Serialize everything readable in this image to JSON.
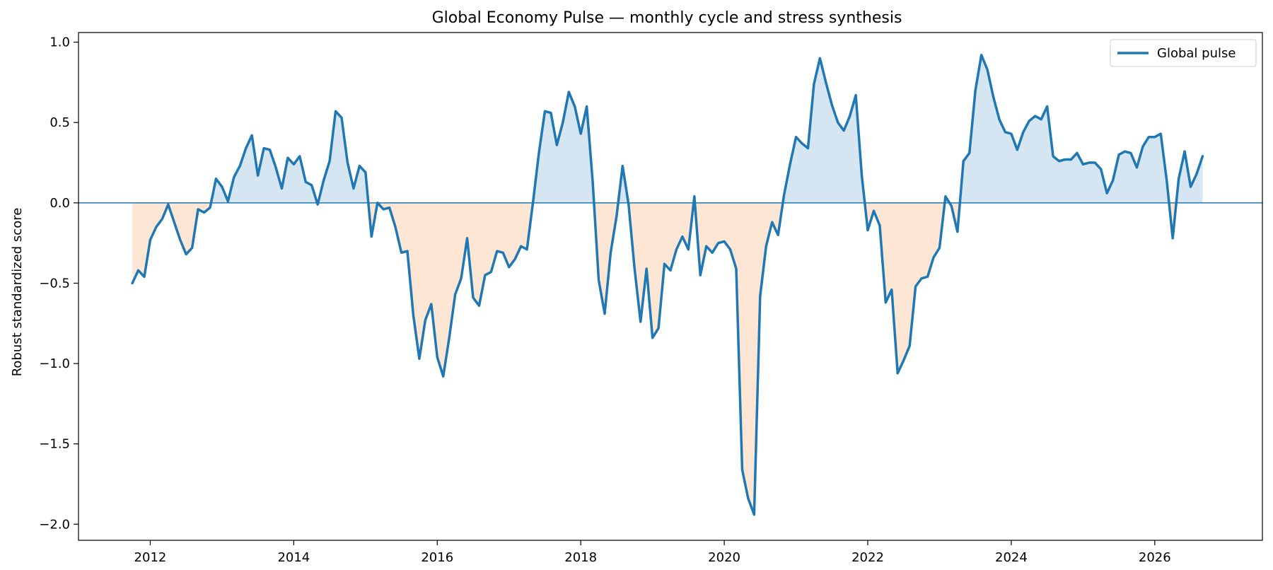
{
  "chart_data": {
    "type": "area",
    "title": "Global Economy Pulse — monthly cycle and stress synthesis",
    "xlabel": "",
    "ylabel": "Robust standardized score",
    "xlim": [
      2011.0,
      2027.5
    ],
    "ylim": [
      -2.1,
      1.06
    ],
    "x_ticks": [
      2012,
      2014,
      2016,
      2018,
      2020,
      2022,
      2024,
      2026
    ],
    "y_ticks": [
      1.0,
      0.5,
      0.0,
      -0.5,
      -1.0,
      -1.5,
      -2.0
    ],
    "x_tick_labels": [
      "2012",
      "2014",
      "2016",
      "2018",
      "2020",
      "2022",
      "2024",
      "2026"
    ],
    "y_tick_labels": [
      "1.0",
      "0.5",
      "0.0",
      "−0.5",
      "−1.0",
      "−1.5",
      "−2.0"
    ],
    "baseline": 0.0,
    "grid": false,
    "legend_position": "top-right",
    "fill_above": "positive",
    "fill_below": "negative",
    "series": [
      {
        "name": "Global pulse",
        "color": "#1f77b4",
        "x": [
          "2011-10",
          "2011-11",
          "2011-12",
          "2012-01",
          "2012-02",
          "2012-03",
          "2012-04",
          "2012-05",
          "2012-06",
          "2012-07",
          "2012-08",
          "2012-09",
          "2012-10",
          "2012-11",
          "2012-12",
          "2013-01",
          "2013-02",
          "2013-03",
          "2013-04",
          "2013-05",
          "2013-06",
          "2013-07",
          "2013-08",
          "2013-09",
          "2013-10",
          "2013-11",
          "2013-12",
          "2014-01",
          "2014-02",
          "2014-03",
          "2014-04",
          "2014-05",
          "2014-06",
          "2014-07",
          "2014-08",
          "2014-09",
          "2014-10",
          "2014-11",
          "2014-12",
          "2015-01",
          "2015-02",
          "2015-03",
          "2015-04",
          "2015-05",
          "2015-06",
          "2015-07",
          "2015-08",
          "2015-09",
          "2015-10",
          "2015-11",
          "2015-12",
          "2016-01",
          "2016-02",
          "2016-03",
          "2016-04",
          "2016-05",
          "2016-06",
          "2016-07",
          "2016-08",
          "2016-09",
          "2016-10",
          "2016-11",
          "2016-12",
          "2017-01",
          "2017-02",
          "2017-03",
          "2017-04",
          "2017-05",
          "2017-06",
          "2017-07",
          "2017-08",
          "2017-09",
          "2017-10",
          "2017-11",
          "2017-12",
          "2018-01",
          "2018-02",
          "2018-03",
          "2018-04",
          "2018-05",
          "2018-06",
          "2018-07",
          "2018-08",
          "2018-09",
          "2018-10",
          "2018-11",
          "2018-12",
          "2019-01",
          "2019-02",
          "2019-03",
          "2019-04",
          "2019-05",
          "2019-06",
          "2019-07",
          "2019-08",
          "2019-09",
          "2019-10",
          "2019-11",
          "2019-12",
          "2020-01",
          "2020-02",
          "2020-03",
          "2020-04",
          "2020-05",
          "2020-06",
          "2020-07",
          "2020-08",
          "2020-09",
          "2020-10",
          "2020-11",
          "2020-12",
          "2021-01",
          "2021-02",
          "2021-03",
          "2021-04",
          "2021-05",
          "2021-06",
          "2021-07",
          "2021-08",
          "2021-09",
          "2021-10",
          "2021-11",
          "2021-12",
          "2022-01",
          "2022-02",
          "2022-03",
          "2022-04",
          "2022-05",
          "2022-06",
          "2022-07",
          "2022-08",
          "2022-09",
          "2022-10",
          "2022-11",
          "2022-12",
          "2023-01",
          "2023-02",
          "2023-03",
          "2023-04",
          "2023-05",
          "2023-06",
          "2023-07",
          "2023-08",
          "2023-09",
          "2023-10",
          "2023-11",
          "2023-12",
          "2024-01",
          "2024-02",
          "2024-03",
          "2024-04",
          "2024-05",
          "2024-06",
          "2024-07",
          "2024-08",
          "2024-09",
          "2024-10",
          "2024-11",
          "2024-12",
          "2025-01",
          "2025-02",
          "2025-03",
          "2025-04",
          "2025-05",
          "2025-06",
          "2025-07",
          "2025-08",
          "2025-09",
          "2025-10",
          "2025-11",
          "2025-12",
          "2026-01",
          "2026-02",
          "2026-03",
          "2026-04",
          "2026-05",
          "2026-06",
          "2026-07",
          "2026-08",
          "2026-09"
        ],
        "values": [
          -0.5,
          -0.42,
          -0.46,
          -0.23,
          -0.15,
          -0.1,
          -0.01,
          -0.12,
          -0.23,
          -0.32,
          -0.28,
          -0.04,
          -0.06,
          -0.03,
          0.15,
          0.1,
          0.01,
          0.16,
          0.23,
          0.34,
          0.42,
          0.17,
          0.34,
          0.33,
          0.22,
          0.09,
          0.28,
          0.24,
          0.29,
          0.13,
          0.11,
          -0.01,
          0.14,
          0.26,
          0.57,
          0.53,
          0.25,
          0.09,
          0.23,
          0.19,
          -0.21,
          0.0,
          -0.04,
          -0.03,
          -0.15,
          -0.31,
          -0.3,
          -0.7,
          -0.97,
          -0.73,
          -0.63,
          -0.96,
          -1.08,
          -0.84,
          -0.57,
          -0.47,
          -0.22,
          -0.59,
          -0.64,
          -0.45,
          -0.43,
          -0.3,
          -0.31,
          -0.4,
          -0.35,
          -0.27,
          -0.29,
          0.0,
          0.31,
          0.57,
          0.56,
          0.36,
          0.5,
          0.69,
          0.6,
          0.43,
          0.6,
          0.13,
          -0.48,
          -0.69,
          -0.31,
          -0.08,
          0.23,
          -0.01,
          -0.41,
          -0.74,
          -0.41,
          -0.84,
          -0.78,
          -0.38,
          -0.42,
          -0.29,
          -0.21,
          -0.29,
          0.04,
          -0.45,
          -0.27,
          -0.31,
          -0.25,
          -0.24,
          -0.29,
          -0.41,
          -1.66,
          -1.84,
          -1.94,
          -0.58,
          -0.27,
          -0.12,
          -0.2,
          0.05,
          0.24,
          0.41,
          0.37,
          0.34,
          0.74,
          0.9,
          0.75,
          0.61,
          0.5,
          0.45,
          0.54,
          0.67,
          0.17,
          -0.17,
          -0.05,
          -0.14,
          -0.62,
          -0.54,
          -1.06,
          -0.98,
          -0.89,
          -0.52,
          -0.47,
          -0.46,
          -0.34,
          -0.28,
          0.04,
          -0.02,
          -0.18,
          0.26,
          0.31,
          0.7,
          0.92,
          0.83,
          0.66,
          0.52,
          0.44,
          0.43,
          0.33,
          0.44,
          0.51,
          0.54,
          0.52,
          0.6,
          0.29,
          0.26,
          0.27,
          0.27,
          0.31,
          0.24,
          0.25,
          0.25,
          0.21,
          0.06,
          0.14,
          0.3,
          0.32,
          0.31,
          0.22,
          0.35,
          0.41,
          0.41,
          0.43,
          0.14,
          -0.22,
          0.15,
          0.32,
          0.1,
          0.18,
          0.29
        ]
      }
    ]
  },
  "colors": {
    "line": "#1f77b4",
    "fill_positive": "#d5e5f1",
    "fill_negative": "#fde6d3",
    "baseline": "#1f77b4"
  }
}
